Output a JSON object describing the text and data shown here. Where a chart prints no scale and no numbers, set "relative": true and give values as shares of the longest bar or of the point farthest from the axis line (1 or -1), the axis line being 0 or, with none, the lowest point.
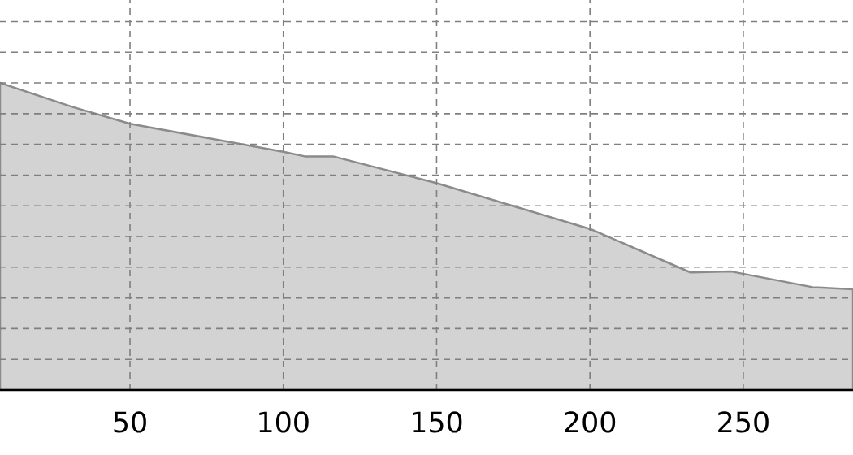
{
  "chart_data": {
    "type": "area",
    "relative": true,
    "x": [
      7.6,
      31.5,
      50.0,
      100.3,
      107.0,
      116.2,
      149.9,
      200.2,
      232.8,
      246.1,
      272.6,
      285.8
    ],
    "values": [
      1,
      0.921,
      0.867,
      0.775,
      0.761,
      0.761,
      0.674,
      0.524,
      0.383,
      0.386,
      0.335,
      0.328
    ],
    "color": "#d3d3d3",
    "xlim": [
      7.6,
      285.8
    ],
    "xticks": [
      50,
      100,
      150,
      200,
      250
    ],
    "grid": true
  }
}
